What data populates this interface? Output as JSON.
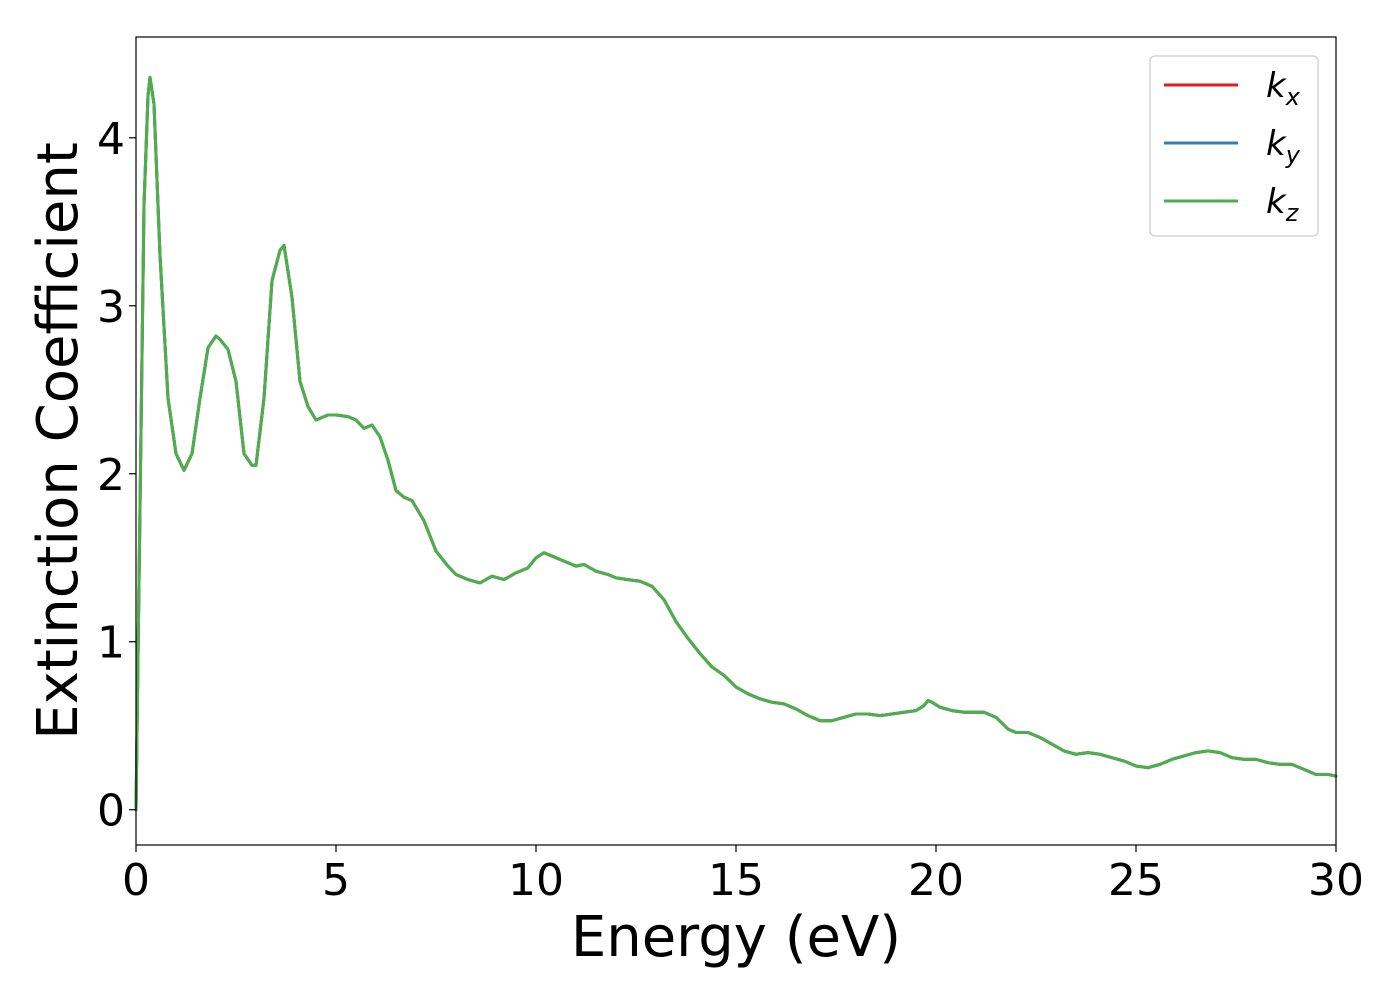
{
  "chart_data": {
    "type": "line",
    "xlabel": "Energy (eV)",
    "ylabel": "Extinction Coefficient",
    "xlim": [
      0,
      30
    ],
    "ylim": [
      -0.21,
      4.6
    ],
    "x_ticks": [
      0,
      5,
      10,
      15,
      20,
      25,
      30
    ],
    "x_tick_labels": [
      "0",
      "5",
      "10",
      "15",
      "20",
      "25",
      "30"
    ],
    "y_ticks": [
      0,
      1,
      2,
      3,
      4
    ],
    "y_tick_labels": [
      "0",
      "1",
      "2",
      "3",
      "4"
    ],
    "grid": false,
    "legend_position": "top-right",
    "x": [
      0.0,
      0.1,
      0.2,
      0.3,
      0.35,
      0.45,
      0.6,
      0.8,
      1.0,
      1.2,
      1.4,
      1.6,
      1.8,
      2.0,
      2.1,
      2.3,
      2.5,
      2.7,
      2.9,
      3.0,
      3.2,
      3.4,
      3.6,
      3.7,
      3.9,
      4.1,
      4.3,
      4.5,
      4.8,
      5.0,
      5.3,
      5.5,
      5.7,
      5.9,
      6.1,
      6.3,
      6.5,
      6.7,
      6.9,
      7.2,
      7.5,
      7.8,
      8.0,
      8.3,
      8.6,
      8.9,
      9.2,
      9.5,
      9.8,
      10.0,
      10.2,
      10.4,
      10.7,
      11.0,
      11.2,
      11.5,
      11.8,
      12.0,
      12.3,
      12.6,
      12.9,
      13.2,
      13.5,
      13.8,
      14.1,
      14.4,
      14.7,
      15.0,
      15.3,
      15.6,
      15.9,
      16.2,
      16.5,
      16.8,
      17.1,
      17.4,
      17.7,
      18.0,
      18.3,
      18.6,
      18.9,
      19.2,
      19.5,
      19.7,
      19.8,
      19.9,
      20.1,
      20.4,
      20.7,
      21.0,
      21.2,
      21.5,
      21.8,
      22.0,
      22.3,
      22.6,
      22.9,
      23.2,
      23.5,
      23.8,
      24.1,
      24.4,
      24.7,
      25.0,
      25.3,
      25.6,
      25.9,
      26.2,
      26.5,
      26.8,
      27.1,
      27.4,
      27.7,
      28.0,
      28.3,
      28.6,
      28.9,
      29.2,
      29.5,
      29.8,
      30.0
    ],
    "series": [
      {
        "name": "k_x",
        "color": "#e41a1c",
        "values": [
          0.0,
          1.8,
          3.6,
          4.25,
          4.36,
          4.2,
          3.3,
          2.45,
          2.12,
          2.02,
          2.12,
          2.45,
          2.75,
          2.82,
          2.8,
          2.74,
          2.55,
          2.12,
          2.05,
          2.05,
          2.45,
          3.15,
          3.33,
          3.36,
          3.05,
          2.55,
          2.4,
          2.32,
          2.35,
          2.35,
          2.34,
          2.32,
          2.27,
          2.29,
          2.22,
          2.08,
          1.9,
          1.86,
          1.84,
          1.72,
          1.54,
          1.45,
          1.4,
          1.37,
          1.35,
          1.39,
          1.37,
          1.41,
          1.44,
          1.5,
          1.53,
          1.51,
          1.48,
          1.45,
          1.46,
          1.42,
          1.4,
          1.38,
          1.37,
          1.36,
          1.33,
          1.25,
          1.12,
          1.02,
          0.93,
          0.85,
          0.8,
          0.73,
          0.69,
          0.66,
          0.64,
          0.63,
          0.6,
          0.56,
          0.53,
          0.53,
          0.55,
          0.57,
          0.57,
          0.56,
          0.57,
          0.58,
          0.59,
          0.62,
          0.65,
          0.64,
          0.61,
          0.59,
          0.58,
          0.58,
          0.58,
          0.55,
          0.48,
          0.46,
          0.46,
          0.43,
          0.39,
          0.35,
          0.33,
          0.34,
          0.33,
          0.31,
          0.29,
          0.26,
          0.25,
          0.27,
          0.3,
          0.32,
          0.34,
          0.35,
          0.34,
          0.31,
          0.3,
          0.3,
          0.28,
          0.27,
          0.27,
          0.24,
          0.21,
          0.21,
          0.2
        ]
      },
      {
        "name": "k_y",
        "color": "#377eb8",
        "values": [
          0.0,
          1.8,
          3.6,
          4.25,
          4.36,
          4.2,
          3.3,
          2.45,
          2.12,
          2.02,
          2.12,
          2.45,
          2.75,
          2.82,
          2.8,
          2.74,
          2.55,
          2.12,
          2.05,
          2.05,
          2.45,
          3.15,
          3.33,
          3.36,
          3.05,
          2.55,
          2.4,
          2.32,
          2.35,
          2.35,
          2.34,
          2.32,
          2.27,
          2.29,
          2.22,
          2.08,
          1.9,
          1.86,
          1.84,
          1.72,
          1.54,
          1.45,
          1.4,
          1.37,
          1.35,
          1.39,
          1.37,
          1.41,
          1.44,
          1.5,
          1.53,
          1.51,
          1.48,
          1.45,
          1.46,
          1.42,
          1.4,
          1.38,
          1.37,
          1.36,
          1.33,
          1.25,
          1.12,
          1.02,
          0.93,
          0.85,
          0.8,
          0.73,
          0.69,
          0.66,
          0.64,
          0.63,
          0.6,
          0.56,
          0.53,
          0.53,
          0.55,
          0.57,
          0.57,
          0.56,
          0.57,
          0.58,
          0.59,
          0.62,
          0.65,
          0.64,
          0.61,
          0.59,
          0.58,
          0.58,
          0.58,
          0.55,
          0.48,
          0.46,
          0.46,
          0.43,
          0.39,
          0.35,
          0.33,
          0.34,
          0.33,
          0.31,
          0.29,
          0.26,
          0.25,
          0.27,
          0.3,
          0.32,
          0.34,
          0.35,
          0.34,
          0.31,
          0.3,
          0.3,
          0.28,
          0.27,
          0.27,
          0.24,
          0.21,
          0.21,
          0.2
        ]
      },
      {
        "name": "k_z",
        "color": "#4daf4a",
        "values": [
          0.0,
          1.8,
          3.6,
          4.25,
          4.36,
          4.2,
          3.3,
          2.45,
          2.12,
          2.02,
          2.12,
          2.45,
          2.75,
          2.82,
          2.8,
          2.74,
          2.55,
          2.12,
          2.05,
          2.05,
          2.45,
          3.15,
          3.33,
          3.36,
          3.05,
          2.55,
          2.4,
          2.32,
          2.35,
          2.35,
          2.34,
          2.32,
          2.27,
          2.29,
          2.22,
          2.08,
          1.9,
          1.86,
          1.84,
          1.72,
          1.54,
          1.45,
          1.4,
          1.37,
          1.35,
          1.39,
          1.37,
          1.41,
          1.44,
          1.5,
          1.53,
          1.51,
          1.48,
          1.45,
          1.46,
          1.42,
          1.4,
          1.38,
          1.37,
          1.36,
          1.33,
          1.25,
          1.12,
          1.02,
          0.93,
          0.85,
          0.8,
          0.73,
          0.69,
          0.66,
          0.64,
          0.63,
          0.6,
          0.56,
          0.53,
          0.53,
          0.55,
          0.57,
          0.57,
          0.56,
          0.57,
          0.58,
          0.59,
          0.62,
          0.65,
          0.64,
          0.61,
          0.59,
          0.58,
          0.58,
          0.58,
          0.55,
          0.48,
          0.46,
          0.46,
          0.43,
          0.39,
          0.35,
          0.33,
          0.34,
          0.33,
          0.31,
          0.29,
          0.26,
          0.25,
          0.27,
          0.3,
          0.32,
          0.34,
          0.35,
          0.34,
          0.31,
          0.3,
          0.3,
          0.28,
          0.27,
          0.27,
          0.24,
          0.21,
          0.21,
          0.2
        ]
      }
    ],
    "legend": [
      {
        "base": "k",
        "sub": "x",
        "color": "#e41a1c"
      },
      {
        "base": "k",
        "sub": "y",
        "color": "#377eb8"
      },
      {
        "base": "k",
        "sub": "z",
        "color": "#4daf4a"
      }
    ]
  }
}
